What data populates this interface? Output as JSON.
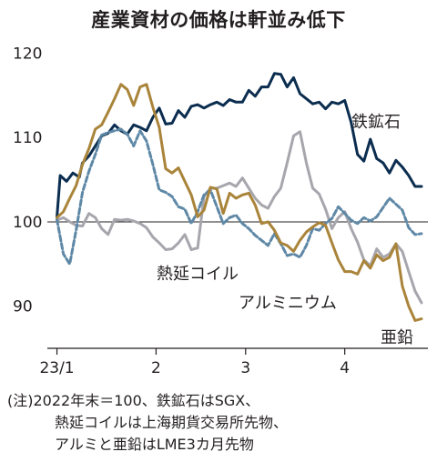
{
  "title": "産業資材の価格は軒並み低下",
  "notes": [
    "(注)2022年末＝100、鉄鉱石はSGX、",
    "熱延コイルは上海期貨交易所先物、",
    "アルミと亜鉛はLME3カ月先物"
  ],
  "chart_data": {
    "type": "line",
    "title": "産業資材の価格は軒並み低下",
    "xlabel": "",
    "ylabel": "",
    "x_ticks": [
      {
        "label": "23/1",
        "x": 0
      },
      {
        "label": "2",
        "x": 31
      },
      {
        "label": "3",
        "x": 59
      },
      {
        "label": "4",
        "x": 90
      }
    ],
    "xlim": [
      -3,
      116
    ],
    "ylim": [
      85,
      122
    ],
    "y_ticks": [
      90,
      100,
      110,
      120
    ],
    "reference_line": 100,
    "grid": false,
    "series": [
      {
        "name": "鉄鉱石",
        "color": "#0b2d4f",
        "dash": "",
        "x": [
          0,
          1,
          3,
          5,
          7,
          8,
          10,
          12,
          14,
          16,
          18,
          20,
          22,
          24,
          26,
          28,
          30,
          32,
          34,
          36,
          38,
          40,
          42,
          44,
          46,
          48,
          50,
          52,
          54,
          56,
          58,
          60,
          62,
          64,
          66,
          68,
          70,
          72,
          74,
          76,
          78,
          80,
          82,
          84,
          86,
          88,
          90,
          92,
          94,
          96,
          98,
          100,
          102,
          104,
          106,
          108,
          110,
          112,
          114
        ],
        "values": [
          100.5,
          105.5,
          104.8,
          105.8,
          105.3,
          107,
          107.8,
          109,
          110.2,
          110.5,
          111.5,
          110.8,
          110.4,
          111.5,
          111.2,
          110.8,
          112.4,
          113.5,
          111.6,
          111.7,
          113.2,
          112.4,
          113.7,
          113.9,
          113.5,
          113.9,
          114.2,
          113.8,
          114.5,
          114.2,
          114.2,
          115.6,
          114.9,
          116,
          116,
          117.6,
          117.5,
          116,
          117.1,
          115.2,
          114.6,
          114,
          114.2,
          113.4,
          114.2,
          114,
          114.4,
          111.8,
          108,
          107.2,
          109.8,
          107.5,
          107,
          105.8,
          107.3,
          106.5,
          105.5,
          104.2,
          104.2
        ]
      },
      {
        "name": "熱延コイル",
        "color": "#a7a6ad",
        "dash": "",
        "x": [
          0,
          2,
          4,
          6,
          8,
          10,
          12,
          14,
          16,
          18,
          20,
          22,
          24,
          26,
          28,
          30,
          32,
          34,
          36,
          38,
          40,
          42,
          44,
          46,
          48,
          50,
          52,
          54,
          56,
          58,
          60,
          62,
          64,
          66,
          68,
          70,
          72,
          74,
          76,
          78,
          80,
          82,
          84,
          86,
          88,
          90,
          92,
          94,
          96,
          98,
          100,
          102,
          104,
          106,
          108,
          110,
          112,
          114
        ],
        "values": [
          100.2,
          100.5,
          100,
          99.6,
          99.5,
          101,
          100.5,
          99.2,
          98.5,
          100.3,
          100.2,
          100.3,
          100.1,
          99.8,
          99.3,
          98.2,
          97.5,
          96.7,
          96.8,
          97.5,
          98.5,
          96.7,
          96.9,
          103,
          104,
          104,
          104.3,
          104.6,
          104.2,
          105.2,
          104,
          102.8,
          102,
          101.6,
          103,
          104,
          107,
          110.2,
          110.7,
          107,
          104,
          103.3,
          101.5,
          99.2,
          100.5,
          101.2,
          99.2,
          97.6,
          95.5,
          94.8,
          96.8,
          95.8,
          96.2,
          97.4,
          96.5,
          94.1,
          91.8,
          90.4
        ]
      },
      {
        "name": "アルミ",
        "color": "#5e88a6",
        "dash": "6 3",
        "x": [
          0,
          2,
          4,
          6,
          8,
          10,
          12,
          14,
          16,
          18,
          20,
          22,
          24,
          26,
          28,
          30,
          32,
          34,
          36,
          38,
          40,
          42,
          44,
          46,
          48,
          50,
          52,
          54,
          56,
          58,
          60,
          62,
          64,
          66,
          68,
          70,
          72,
          74,
          76,
          78,
          80,
          82,
          84,
          86,
          88,
          90,
          92,
          94,
          96,
          98,
          100,
          102,
          104,
          106,
          108,
          110,
          112,
          114
        ],
        "values": [
          100.3,
          96.2,
          95,
          99,
          103.5,
          106,
          108,
          110.3,
          110.6,
          110.8,
          111,
          110.4,
          109,
          110.8,
          109.6,
          106.8,
          103.8,
          103.5,
          103,
          101.8,
          101.5,
          99.8,
          101.2,
          103.2,
          103.8,
          101.8,
          99.8,
          100.5,
          100.8,
          99.8,
          99.2,
          98.4,
          97.8,
          97.2,
          98.6,
          97.4,
          96,
          96.2,
          95.8,
          97.2,
          99.2,
          99,
          99.8,
          100.4,
          101.8,
          101,
          100.2,
          99.8,
          100.5,
          100.1,
          100.6,
          101.7,
          102.8,
          102.1,
          101.4,
          99.3,
          98.5,
          98.6
        ]
      },
      {
        "name": "亜鉛",
        "color": "#a9843a",
        "dash": "",
        "x": [
          0,
          2,
          4,
          6,
          8,
          10,
          12,
          14,
          16,
          18,
          20,
          22,
          24,
          26,
          28,
          30,
          32,
          34,
          36,
          38,
          40,
          42,
          44,
          46,
          48,
          50,
          52,
          54,
          56,
          58,
          60,
          62,
          64,
          66,
          68,
          70,
          72,
          74,
          76,
          78,
          80,
          82,
          84,
          86,
          88,
          90,
          92,
          94,
          96,
          98,
          100,
          102,
          104,
          106,
          108,
          110,
          112,
          114
        ],
        "values": [
          100.5,
          101.2,
          102.8,
          104.3,
          106.8,
          108.7,
          111,
          111.5,
          113,
          114.6,
          116.3,
          115.7,
          113.8,
          116,
          116.3,
          113.6,
          111.2,
          106.3,
          105.8,
          106.4,
          104.8,
          103.2,
          100.6,
          101.4,
          104.1,
          103.9,
          101,
          103.4,
          102.8,
          103.2,
          103.4,
          102,
          99.8,
          100,
          99,
          97.5,
          97.2,
          96.5,
          97.8,
          98.8,
          99.4,
          99.9,
          99.6,
          97.5,
          95.5,
          94.1,
          94.1,
          93.8,
          95.4,
          94.5,
          96.1,
          95.4,
          95.8,
          97.4,
          92.4,
          90,
          88.3,
          88.5
        ]
      }
    ],
    "labels": [
      {
        "text": "鉄鉱石"
      },
      {
        "text": "熱延コイル"
      },
      {
        "text": "アルミニウム"
      },
      {
        "text": "亜鉛"
      }
    ]
  }
}
